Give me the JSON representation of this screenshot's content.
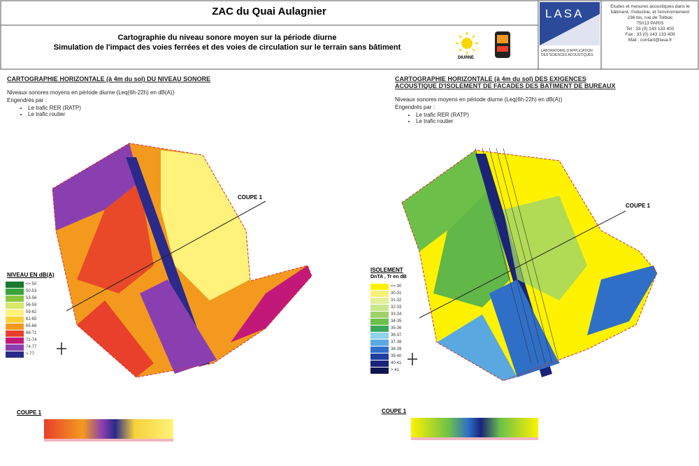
{
  "header": {
    "title": "ZAC du Quai Aulagnier",
    "subtitle_1": "Cartographie du niveau sonore moyen sur la période diurne",
    "subtitle_2": "Simulation de l'impact des voies ferrées et des voies de circulation sur le terrain sans bâtiment",
    "period": "DIURNE",
    "logo": "LASA",
    "logo_caption": "LABORATOIRE D'APPLICATION DES SCIENCES ACOUSTIQUES",
    "contact": [
      "Etudes et mesures acoustiques dans le bâtiment, l'industrie, et l'environnement",
      "236 bis, rue de Tolbiac",
      "75013 PARIS",
      "Tel : 33 (0) 143 133 400",
      "Fax : 33 (0) 143 133 409",
      "Mail : contact@lasa.fr"
    ]
  },
  "left": {
    "heading": "CARTOGRAPHIE HORIZONTALE (à 4m du sol) DU NIVEAU SONORE",
    "description": "Niveaux sonores moyens en période diurne (Leq(6h-22h) en dB(A))",
    "sources_label": "Engendrés par :",
    "sources": [
      "Le trafic RER (RATP)",
      "Le trafic routier"
    ],
    "section_label": "COUPE 1",
    "legend_title": "NIVEAU EN dB(A)",
    "legend": [
      {
        "label": "<= 50",
        "color": "#1a7a2e"
      },
      {
        "label": "50-53",
        "color": "#3aa33a"
      },
      {
        "label": "53-56",
        "color": "#8cc63f"
      },
      {
        "label": "56-59",
        "color": "#d7e86a"
      },
      {
        "label": "59-62",
        "color": "#fff27a"
      },
      {
        "label": "62-65",
        "color": "#f7d23a"
      },
      {
        "label": "65-68",
        "color": "#f39a1e"
      },
      {
        "label": "68-71",
        "color": "#e8402a"
      },
      {
        "label": "71-74",
        "color": "#c2187a"
      },
      {
        "label": "74-77",
        "color": "#8a3fb0"
      },
      {
        "label": "> 77",
        "color": "#2b2a8a"
      }
    ],
    "profile_label": "COUPE 1"
  },
  "right": {
    "heading": "CARTOGRAPHIE HORIZONTALE (à 4m du sol) DES EXIGENCES ACOUSTIQUE D'ISOLEMENT DE FACADES DES BATIMENT DE BUREAUX",
    "description": "Niveaux sonores moyens en période diurne (Leq(6h-22h) en dB(A))",
    "sources_label": "Engendrés par :",
    "sources": [
      "Le trafic RER (RATP)",
      "Le trafic routier"
    ],
    "section_label": "COUPE 1",
    "legend_title": "ISOLEMENT",
    "legend_subtitle": "DnTA , Tr en dB",
    "legend": [
      {
        "label": "<= 30",
        "color": "#fff200"
      },
      {
        "label": "30-31",
        "color": "#f5f07a"
      },
      {
        "label": "31-32",
        "color": "#e4ef9a"
      },
      {
        "label": "32-33",
        "color": "#c8e68a"
      },
      {
        "label": "33-34",
        "color": "#9ed36a"
      },
      {
        "label": "34-35",
        "color": "#6cc04a"
      },
      {
        "label": "35-36",
        "color": "#3aa85a"
      },
      {
        "label": "36-37",
        "color": "#8fd3e8"
      },
      {
        "label": "37-38",
        "color": "#5aa8e0"
      },
      {
        "label": "38-39",
        "color": "#2f6fc8"
      },
      {
        "label": "39-40",
        "color": "#1f3fa0"
      },
      {
        "label": "40-41",
        "color": "#1a237a"
      },
      {
        "label": "> 41",
        "color": "#0d1450"
      }
    ],
    "profile_label": "COUPE 1"
  }
}
